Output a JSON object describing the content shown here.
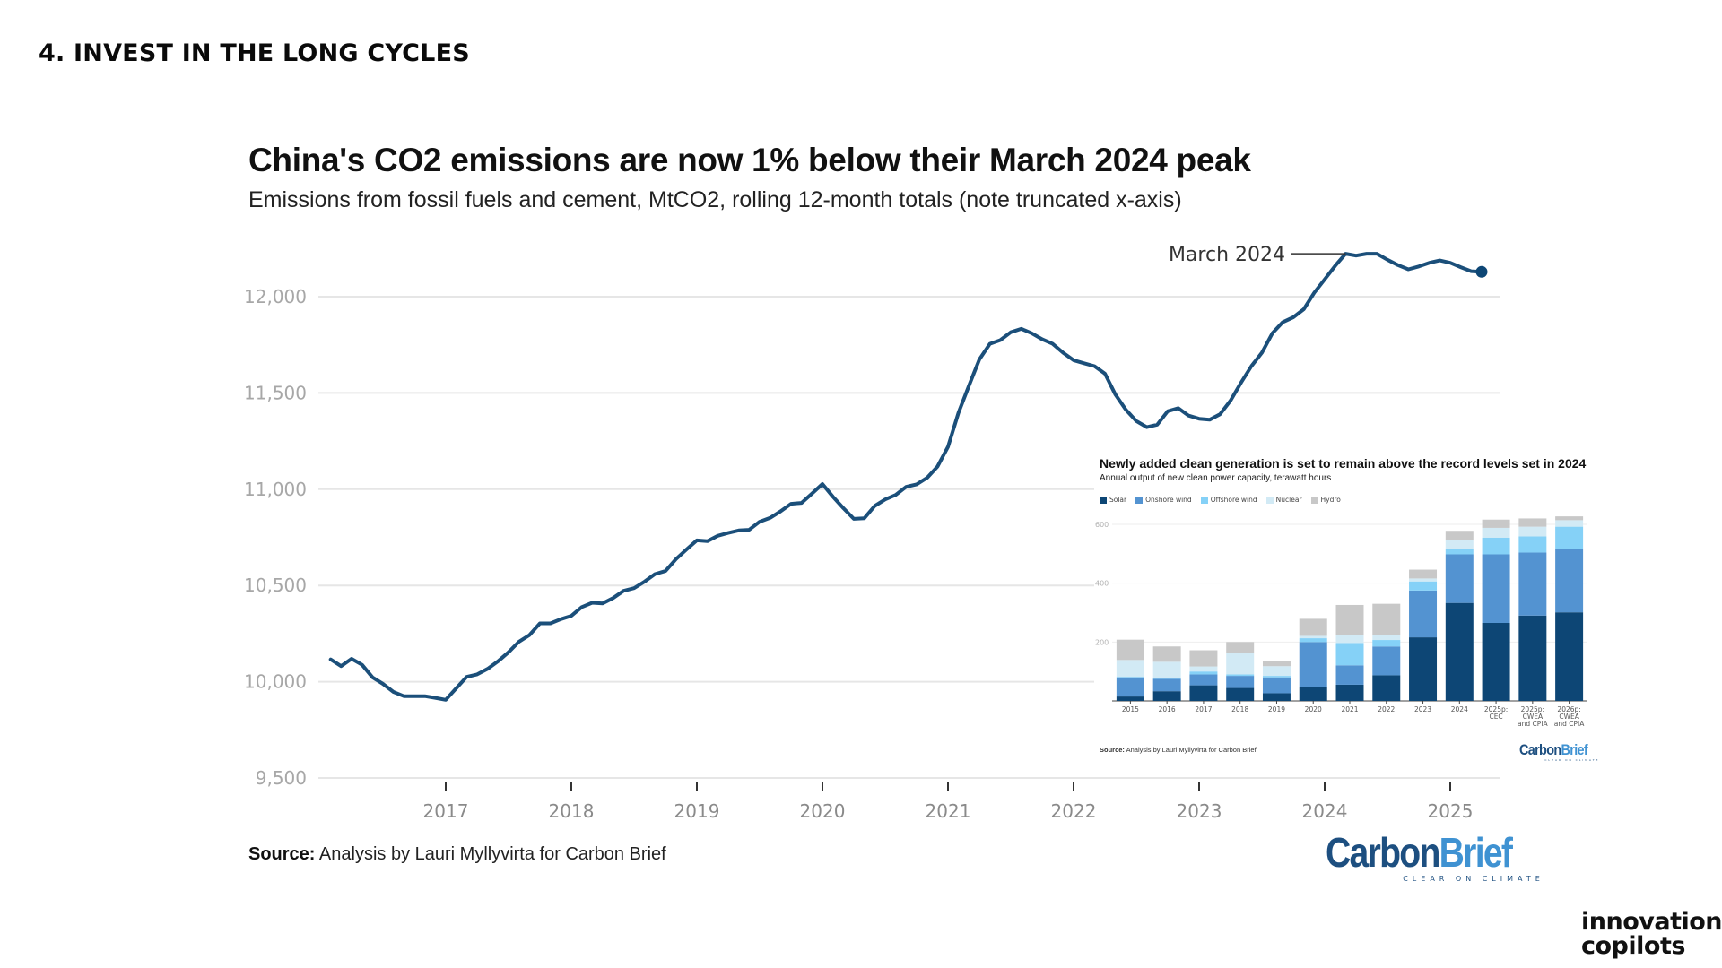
{
  "slide": {
    "title": "4. INVEST IN THE LONG CYCLES",
    "brand_line1": "innovation",
    "brand_line2": "copilots"
  },
  "main_chart": {
    "title": "China's CO2 emissions are now 1% below their March 2024 peak",
    "subtitle": "Emissions from fossil fuels and cement, MtCO2, rolling 12-month totals (note truncated x-axis)",
    "annotation": "March 2024",
    "source_label": "Source:",
    "source_text": " Analysis by Lauri Myllyvirta for Carbon Brief",
    "logo_carbon": "Carbon",
    "logo_brief": "Brief",
    "logo_tagline": "CLEAR ON CLIMATE",
    "line_color": "#1b4f7a"
  },
  "inset_chart": {
    "source_label": "Source:",
    "source_text": " Analysis by Lauri Myllyvirta for Carbon Brief",
    "logo_carbon": "Carbon",
    "logo_brief": "Brief",
    "logo_tagline": "CLEAR ON CLIMATE"
  },
  "chart_data": [
    {
      "type": "line",
      "title": "China's CO2 emissions are now 1% below their March 2024 peak",
      "subtitle": "Emissions from fossil fuels and cement, MtCO2, rolling 12-month totals (note truncated x-axis)",
      "xlabel": "",
      "ylabel": "MtCO2",
      "ylim": [
        9500,
        12250
      ],
      "yticks": [
        9500,
        10000,
        10500,
        11000,
        11500,
        12000
      ],
      "ytick_labels": [
        "9,500",
        "10,000",
        "10,500",
        "11,000",
        "11,500",
        "12,000"
      ],
      "xticks": [
        "2017",
        "2018",
        "2019",
        "2020",
        "2021",
        "2022",
        "2023",
        "2024",
        "2025"
      ],
      "x_start": "2016-02",
      "x_step": "month",
      "grid": true,
      "annotations": [
        {
          "label": "March 2024",
          "x": "2024-03",
          "y": 12223
        }
      ],
      "end_marker": {
        "x": "2025-04",
        "y": 12129
      },
      "series": [
        {
          "name": "China CO2 emissions (rolling 12-month)",
          "values": [
            10116,
            10081,
            10119,
            10088,
            10023,
            9989,
            9947,
            9925,
            9925,
            9925,
            9916,
            9906,
            9966,
            10025,
            10038,
            10067,
            10106,
            10153,
            10208,
            10242,
            10303,
            10303,
            10325,
            10342,
            10388,
            10410,
            10407,
            10435,
            10472,
            10486,
            10520,
            10559,
            10575,
            10637,
            10686,
            10734,
            10730,
            10758,
            10773,
            10786,
            10789,
            10831,
            10851,
            10885,
            10924,
            10929,
            10977,
            11027,
            10961,
            10902,
            10846,
            10849,
            10913,
            10947,
            10970,
            11012,
            11025,
            11059,
            11118,
            11220,
            11397,
            11537,
            11674,
            11755,
            11774,
            11815,
            11833,
            11810,
            11779,
            11755,
            11709,
            11670,
            11654,
            11639,
            11600,
            11491,
            11413,
            11354,
            11322,
            11335,
            11405,
            11421,
            11382,
            11366,
            11361,
            11389,
            11460,
            11553,
            11639,
            11709,
            11810,
            11868,
            11893,
            11935,
            12020,
            12090,
            12160,
            12223,
            12213,
            12223,
            12223,
            12192,
            12164,
            12142,
            12157,
            12176,
            12188,
            12176,
            12153,
            12132,
            12129
          ]
        }
      ],
      "source": "Source: Analysis by Lauri Myllyvirta for Carbon Brief"
    },
    {
      "type": "bar",
      "stacked": true,
      "title": "Newly added clean generation is set to remain above the record levels set in 2024",
      "subtitle": "Annual output of new clean power capacity, terawatt hours",
      "xlabel": "",
      "ylabel": "TWh",
      "ylim": [
        0,
        640
      ],
      "yticks": [
        200,
        400,
        600
      ],
      "grid": true,
      "legend_position": "top-left",
      "categories": [
        "2015",
        "2016",
        "2017",
        "2018",
        "2019",
        "2020",
        "2021",
        "2022",
        "2023",
        "2024",
        "2025p: CEC",
        "2025p: CWEA and CPIA",
        "2026p: CWEA and CPIA"
      ],
      "category_lines": [
        [
          "2015"
        ],
        [
          "2016"
        ],
        [
          "2017"
        ],
        [
          "2018"
        ],
        [
          "2019"
        ],
        [
          "2020"
        ],
        [
          "2021"
        ],
        [
          "2022"
        ],
        [
          "2023"
        ],
        [
          "2024"
        ],
        [
          "2025p:",
          "CEC"
        ],
        [
          "2025p:",
          "CWEA",
          "and CPIA"
        ],
        [
          "2026p:",
          "CWEA",
          "and CPIA"
        ]
      ],
      "series": [
        {
          "name": "Solar",
          "color": "#0d4675",
          "values": [
            15,
            33,
            53,
            44,
            26,
            48,
            55,
            87,
            216,
            333,
            265,
            290,
            301
          ]
        },
        {
          "name": "Onshore wind",
          "color": "#5393d1",
          "values": [
            65,
            42,
            37,
            41,
            54,
            152,
            66,
            98,
            159,
            165,
            233,
            214,
            214
          ]
        },
        {
          "name": "Offshore wind",
          "color": "#85d1f7",
          "values": [
            2,
            2,
            10,
            5,
            5,
            13,
            76,
            22,
            31,
            18,
            57,
            55,
            77
          ]
        },
        {
          "name": "Nuclear",
          "color": "#d2eaf5",
          "values": [
            57,
            56,
            17,
            72,
            33,
            8,
            26,
            17,
            10,
            32,
            33,
            33,
            22
          ]
        },
        {
          "name": "Hydro",
          "color": "#c8c8c8",
          "values": [
            69,
            52,
            55,
            38,
            19,
            58,
            103,
            106,
            30,
            30,
            28,
            28,
            13
          ]
        }
      ],
      "source": "Source: Analysis by Lauri Myllyvirta for Carbon Brief"
    }
  ]
}
